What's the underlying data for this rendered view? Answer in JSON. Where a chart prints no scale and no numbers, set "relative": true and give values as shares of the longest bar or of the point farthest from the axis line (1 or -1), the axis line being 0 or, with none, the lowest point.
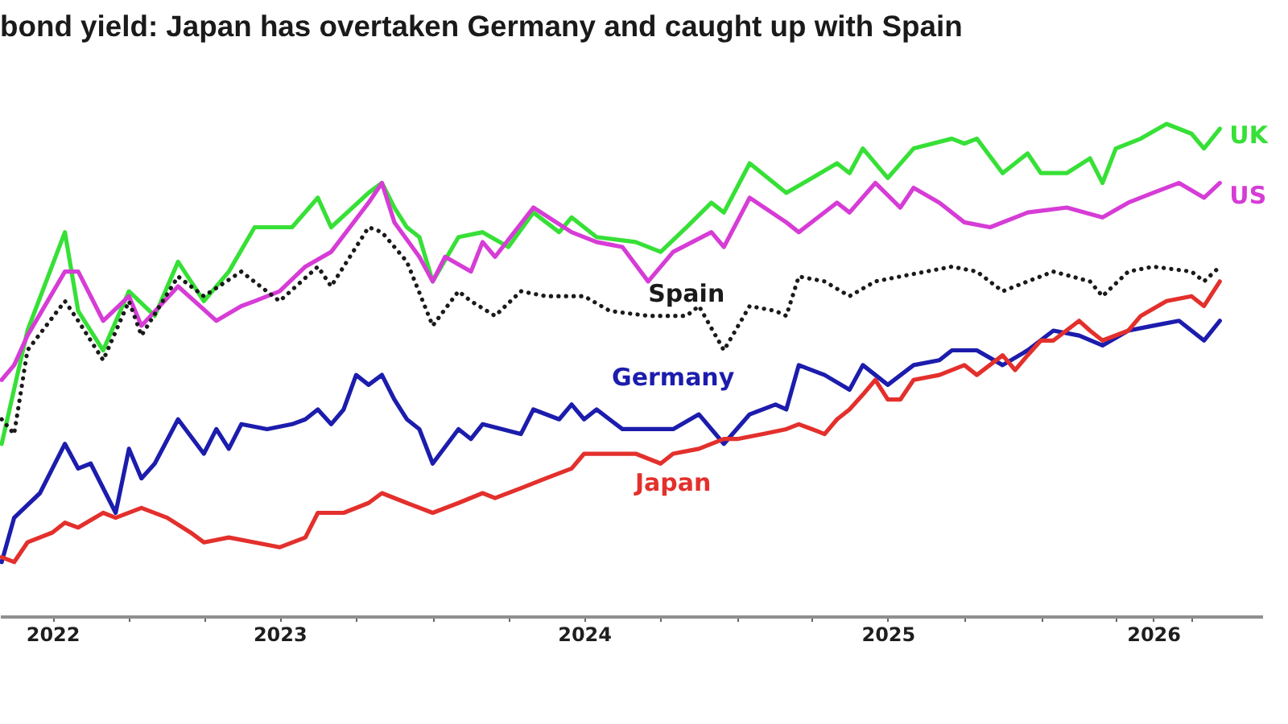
{
  "chart_data": {
    "type": "line",
    "title": "bond yield: Japan has overtaken Germany and caught up with Spain",
    "relative": true,
    "xlim": [
      "2022-07-30",
      "2026-09-24"
    ],
    "xticks": [
      {
        "value": "2022-10-01",
        "label": "2022"
      },
      {
        "value": "2023-01-01",
        "label": null
      },
      {
        "value": "2023-04-01",
        "label": null
      },
      {
        "value": "2023-07-01",
        "label": "2023"
      },
      {
        "value": "2023-10-01",
        "label": null
      },
      {
        "value": "2024-01-01",
        "label": null
      },
      {
        "value": "2024-04-01",
        "label": null
      },
      {
        "value": "2024-07-01",
        "label": "2024"
      },
      {
        "value": "2024-10-01",
        "label": null
      },
      {
        "value": "2025-01-01",
        "label": null
      },
      {
        "value": "2025-04-01",
        "label": null
      },
      {
        "value": "2025-07-01",
        "label": "2025"
      },
      {
        "value": "2025-10-01",
        "label": null
      },
      {
        "value": "2026-01-01",
        "label": null
      },
      {
        "value": "2026-04-01",
        "label": null
      },
      {
        "value": "2026-05-16",
        "label": "2026"
      },
      {
        "value": "2026-07-01",
        "label": null
      }
    ],
    "grid": false,
    "legend": false,
    "marker": "none",
    "line_style": "solid",
    "series": [
      {
        "name": "UK",
        "color": "#36e036",
        "x": [
          "2022-08-01",
          "2022-09-01",
          "2022-10-16",
          "2022-11-01",
          "2022-12-01",
          "2023-01-01",
          "2023-02-01",
          "2023-03-01",
          "2023-04-01",
          "2023-05-01",
          "2023-06-01",
          "2023-07-16",
          "2023-08-16",
          "2023-09-01",
          "2023-10-16",
          "2023-11-01",
          "2023-11-16",
          "2023-12-01",
          "2023-12-16",
          "2024-01-01",
          "2024-02-01",
          "2024-03-01",
          "2024-04-01",
          "2024-05-01",
          "2024-06-01",
          "2024-06-16",
          "2024-07-16",
          "2024-09-01",
          "2024-10-01",
          "2024-11-01",
          "2024-12-01",
          "2024-12-16",
          "2025-01-16",
          "2025-03-01",
          "2025-04-01",
          "2025-05-01",
          "2025-05-16",
          "2025-06-01",
          "2025-07-01",
          "2025-08-01",
          "2025-09-16",
          "2025-10-01",
          "2025-10-16",
          "2025-11-16",
          "2025-12-16",
          "2026-01-01",
          "2026-02-01",
          "2026-03-01",
          "2026-03-16",
          "2026-04-01",
          "2026-05-01",
          "2026-06-01",
          "2026-07-01",
          "2026-07-16",
          "2026-08-04"
        ],
        "values": [
          0.35,
          0.58,
          0.78,
          0.62,
          0.54,
          0.66,
          0.61,
          0.72,
          0.64,
          0.7,
          0.79,
          0.79,
          0.85,
          0.79,
          0.86,
          0.88,
          0.83,
          0.79,
          0.77,
          0.68,
          0.77,
          0.78,
          0.75,
          0.82,
          0.78,
          0.81,
          0.77,
          0.76,
          0.74,
          0.79,
          0.84,
          0.82,
          0.92,
          0.86,
          0.89,
          0.92,
          0.9,
          0.95,
          0.89,
          0.95,
          0.97,
          0.96,
          0.97,
          0.9,
          0.94,
          0.9,
          0.9,
          0.93,
          0.88,
          0.95,
          0.97,
          1.0,
          0.98,
          0.95,
          0.99
        ]
      },
      {
        "name": "US",
        "color": "#d63cd6",
        "x": [
          "2022-08-01",
          "2022-08-16",
          "2022-09-01",
          "2022-10-16",
          "2022-11-01",
          "2022-12-01",
          "2023-01-01",
          "2023-01-16",
          "2023-03-01",
          "2023-04-16",
          "2023-05-16",
          "2023-06-01",
          "2023-07-01",
          "2023-08-01",
          "2023-09-01",
          "2023-10-16",
          "2023-11-01",
          "2023-11-16",
          "2023-12-16",
          "2024-01-01",
          "2024-01-16",
          "2024-02-16",
          "2024-03-01",
          "2024-03-16",
          "2024-05-01",
          "2024-06-16",
          "2024-07-16",
          "2024-08-16",
          "2024-09-16",
          "2024-10-16",
          "2024-12-01",
          "2024-12-16",
          "2025-01-16",
          "2025-03-01",
          "2025-03-16",
          "2025-05-01",
          "2025-05-16",
          "2025-06-16",
          "2025-07-16",
          "2025-08-01",
          "2025-09-01",
          "2025-10-01",
          "2025-11-01",
          "2025-12-16",
          "2026-02-01",
          "2026-03-16",
          "2026-04-16",
          "2026-05-16",
          "2026-06-16",
          "2026-07-16",
          "2026-08-04"
        ],
        "values": [
          0.48,
          0.51,
          0.57,
          0.7,
          0.7,
          0.6,
          0.65,
          0.59,
          0.67,
          0.6,
          0.63,
          0.64,
          0.66,
          0.71,
          0.74,
          0.84,
          0.88,
          0.8,
          0.73,
          0.68,
          0.73,
          0.7,
          0.76,
          0.73,
          0.83,
          0.78,
          0.76,
          0.75,
          0.68,
          0.74,
          0.78,
          0.75,
          0.85,
          0.8,
          0.78,
          0.84,
          0.82,
          0.88,
          0.83,
          0.87,
          0.84,
          0.8,
          0.79,
          0.82,
          0.83,
          0.81,
          0.84,
          0.86,
          0.88,
          0.85,
          0.88
        ]
      },
      {
        "name": "Spain",
        "color": "#1a1a1a",
        "line_style": "dotted",
        "x": [
          "2022-08-01",
          "2022-08-16",
          "2022-09-01",
          "2022-10-16",
          "2022-11-01",
          "2022-12-01",
          "2023-01-01",
          "2023-01-16",
          "2023-03-01",
          "2023-04-01",
          "2023-05-16",
          "2023-07-01",
          "2023-08-16",
          "2023-09-01",
          "2023-10-16",
          "2023-11-01",
          "2023-12-01",
          "2024-01-01",
          "2024-02-01",
          "2024-02-16",
          "2024-03-16",
          "2024-04-16",
          "2024-05-16",
          "2024-07-01",
          "2024-08-01",
          "2024-09-16",
          "2024-11-01",
          "2024-11-16",
          "2024-12-16",
          "2025-01-16",
          "2025-02-16",
          "2025-03-01",
          "2025-03-16",
          "2025-04-16",
          "2025-05-16",
          "2025-06-16",
          "2025-07-16",
          "2025-08-16",
          "2025-09-16",
          "2025-10-16",
          "2025-11-16",
          "2025-12-16",
          "2026-01-16",
          "2026-03-01",
          "2026-03-16",
          "2026-04-16",
          "2026-05-16",
          "2026-07-01",
          "2026-07-16",
          "2026-08-04"
        ],
        "values": [
          0.4,
          0.37,
          0.54,
          0.64,
          0.6,
          0.52,
          0.64,
          0.57,
          0.69,
          0.65,
          0.7,
          0.64,
          0.71,
          0.67,
          0.79,
          0.78,
          0.72,
          0.59,
          0.66,
          0.64,
          0.61,
          0.66,
          0.65,
          0.65,
          0.62,
          0.61,
          0.61,
          0.63,
          0.54,
          0.63,
          0.62,
          0.61,
          0.69,
          0.68,
          0.65,
          0.68,
          0.69,
          0.7,
          0.71,
          0.7,
          0.66,
          0.68,
          0.7,
          0.68,
          0.65,
          0.7,
          0.71,
          0.7,
          0.68,
          0.71
        ]
      },
      {
        "name": "Germany",
        "color": "#1c1cad",
        "x": [
          "2022-08-01",
          "2022-08-16",
          "2022-09-16",
          "2022-10-01",
          "2022-10-16",
          "2022-11-01",
          "2022-11-16",
          "2022-12-16",
          "2023-01-01",
          "2023-01-16",
          "2023-02-01",
          "2023-03-01",
          "2023-04-01",
          "2023-04-16",
          "2023-05-01",
          "2023-05-16",
          "2023-06-16",
          "2023-07-16",
          "2023-08-01",
          "2023-08-16",
          "2023-09-01",
          "2023-09-16",
          "2023-10-01",
          "2023-10-16",
          "2023-11-01",
          "2023-11-16",
          "2023-12-01",
          "2023-12-16",
          "2024-01-01",
          "2024-02-01",
          "2024-02-16",
          "2024-03-01",
          "2024-04-16",
          "2024-05-01",
          "2024-06-01",
          "2024-06-16",
          "2024-07-01",
          "2024-07-16",
          "2024-08-16",
          "2024-09-16",
          "2024-10-16",
          "2024-11-16",
          "2024-12-16",
          "2025-01-16",
          "2025-02-16",
          "2025-03-01",
          "2025-03-16",
          "2025-04-16",
          "2025-05-16",
          "2025-06-01",
          "2025-07-01",
          "2025-08-01",
          "2025-09-01",
          "2025-09-16",
          "2025-10-16",
          "2025-11-16",
          "2025-12-16",
          "2026-01-16",
          "2026-02-16",
          "2026-03-16",
          "2026-04-16",
          "2026-05-16",
          "2026-06-16",
          "2026-07-01",
          "2026-07-16",
          "2026-08-04"
        ],
        "values": [
          0.11,
          0.2,
          0.25,
          0.3,
          0.35,
          0.3,
          0.31,
          0.21,
          0.34,
          0.28,
          0.31,
          0.4,
          0.33,
          0.38,
          0.34,
          0.39,
          0.38,
          0.39,
          0.4,
          0.42,
          0.39,
          0.42,
          0.49,
          0.47,
          0.49,
          0.44,
          0.4,
          0.38,
          0.31,
          0.38,
          0.36,
          0.39,
          0.37,
          0.42,
          0.4,
          0.43,
          0.4,
          0.42,
          0.38,
          0.38,
          0.38,
          0.41,
          0.35,
          0.41,
          0.43,
          0.42,
          0.51,
          0.49,
          0.46,
          0.51,
          0.47,
          0.51,
          0.52,
          0.54,
          0.54,
          0.51,
          0.54,
          0.58,
          0.57,
          0.55,
          0.58,
          0.59,
          0.6,
          0.58,
          0.56,
          0.6
        ]
      },
      {
        "name": "Japan",
        "color": "#e3302c",
        "x": [
          "2022-08-01",
          "2022-08-16",
          "2022-09-01",
          "2022-10-01",
          "2022-10-16",
          "2022-11-01",
          "2022-12-01",
          "2022-12-16",
          "2023-01-16",
          "2023-02-16",
          "2023-03-16",
          "2023-04-01",
          "2023-05-01",
          "2023-06-01",
          "2023-07-01",
          "2023-08-01",
          "2023-08-16",
          "2023-09-16",
          "2023-10-16",
          "2023-11-01",
          "2023-12-01",
          "2024-01-01",
          "2024-02-01",
          "2024-03-01",
          "2024-03-16",
          "2024-04-16",
          "2024-05-16",
          "2024-06-16",
          "2024-07-01",
          "2024-08-01",
          "2024-09-01",
          "2024-10-01",
          "2024-10-16",
          "2024-11-16",
          "2024-12-16",
          "2025-01-01",
          "2025-02-01",
          "2025-03-01",
          "2025-03-16",
          "2025-04-01",
          "2025-04-16",
          "2025-05-01",
          "2025-05-16",
          "2025-06-01",
          "2025-06-16",
          "2025-07-01",
          "2025-07-16",
          "2025-08-01",
          "2025-09-01",
          "2025-10-01",
          "2025-10-16",
          "2025-11-16",
          "2025-12-01",
          "2025-12-16",
          "2026-01-01",
          "2026-01-16",
          "2026-02-16",
          "2026-03-01",
          "2026-03-16",
          "2026-04-16",
          "2026-05-01",
          "2026-06-01",
          "2026-07-01",
          "2026-07-16",
          "2026-08-04"
        ],
        "values": [
          0.12,
          0.11,
          0.15,
          0.17,
          0.19,
          0.18,
          0.21,
          0.2,
          0.22,
          0.2,
          0.17,
          0.15,
          0.16,
          0.15,
          0.14,
          0.16,
          0.21,
          0.21,
          0.23,
          0.25,
          0.23,
          0.21,
          0.23,
          0.25,
          0.24,
          0.26,
          0.28,
          0.3,
          0.33,
          0.33,
          0.33,
          0.31,
          0.33,
          0.34,
          0.36,
          0.36,
          0.37,
          0.38,
          0.39,
          0.38,
          0.37,
          0.4,
          0.42,
          0.45,
          0.48,
          0.44,
          0.44,
          0.48,
          0.49,
          0.51,
          0.49,
          0.53,
          0.5,
          0.53,
          0.56,
          0.56,
          0.6,
          0.58,
          0.56,
          0.58,
          0.61,
          0.64,
          0.65,
          0.63,
          0.68
        ]
      }
    ]
  }
}
